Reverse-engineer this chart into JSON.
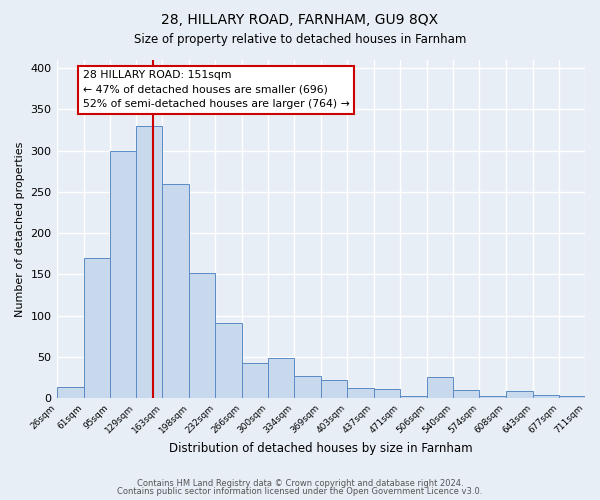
{
  "title": "28, HILLARY ROAD, FARNHAM, GU9 8QX",
  "subtitle": "Size of property relative to detached houses in Farnham",
  "xlabel": "Distribution of detached houses by size in Farnham",
  "ylabel": "Number of detached properties",
  "footer_line1": "Contains HM Land Registry data © Crown copyright and database right 2024.",
  "footer_line2": "Contains public sector information licensed under the Open Government Licence v3.0.",
  "annotation_title": "28 HILLARY ROAD: 151sqm",
  "annotation_line1": "← 47% of detached houses are smaller (696)",
  "annotation_line2": "52% of semi-detached houses are larger (764) →",
  "bin_edges": [
    26,
    61,
    95,
    129,
    163,
    198,
    232,
    266,
    300,
    334,
    369,
    403,
    437,
    471,
    506,
    540,
    574,
    608,
    643,
    677,
    711
  ],
  "bin_counts": [
    14,
    170,
    300,
    330,
    260,
    152,
    91,
    43,
    49,
    27,
    22,
    12,
    11,
    2,
    25,
    10,
    2,
    9,
    4,
    3
  ],
  "property_value": 151,
  "bar_fill_color": "#c8d8ed",
  "bar_edge_color": "#5b8bc5",
  "vline_color": "#cc0000",
  "background_color": "#e8eef6",
  "plot_bg_color": "#e8eef6",
  "grid_color": "#ffffff",
  "annotation_box_color": "#ffffff",
  "annotation_box_edge": "#cc0000",
  "ylim": [
    0,
    410
  ],
  "yticks": [
    0,
    50,
    100,
    150,
    200,
    250,
    300,
    350,
    400
  ]
}
